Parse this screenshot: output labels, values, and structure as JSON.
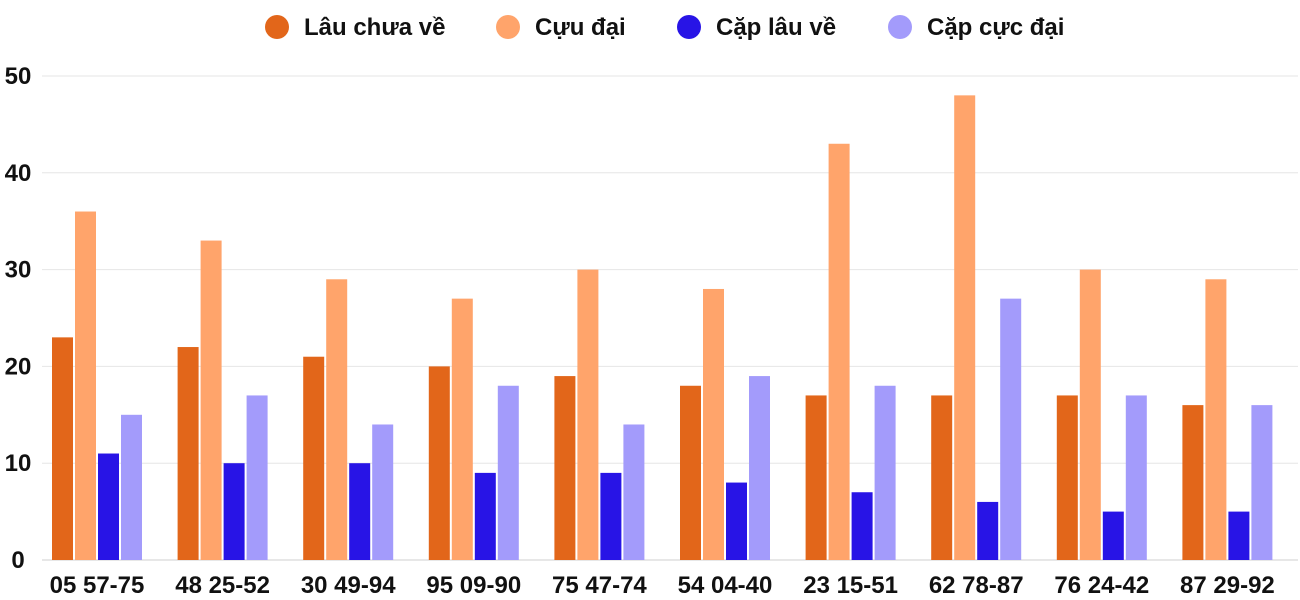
{
  "chart_data": {
    "type": "bar",
    "title": "",
    "xlabel": "",
    "ylabel": "",
    "ylim": [
      0,
      50
    ],
    "yticks": [
      0,
      10,
      20,
      30,
      40,
      50
    ],
    "grid": true,
    "legend_position": "top-center",
    "categories": [
      "05 57-75",
      "48 25-52",
      "30 49-94",
      "95 09-90",
      "75 47-74",
      "54 04-40",
      "23 15-51",
      "62 78-87",
      "76 24-42",
      "87 29-92"
    ],
    "series": [
      {
        "name": "Lâu chưa về",
        "color": "#e2661a",
        "values": [
          23,
          22,
          21,
          20,
          19,
          18,
          17,
          17,
          17,
          16
        ]
      },
      {
        "name": "Cựu đại",
        "color": "#ffa46b",
        "values": [
          36,
          33,
          29,
          27,
          30,
          28,
          43,
          48,
          30,
          29
        ]
      },
      {
        "name": "Cặp lâu về",
        "color": "#2814e6",
        "values": [
          11,
          10,
          10,
          9,
          9,
          8,
          7,
          6,
          5,
          5
        ]
      },
      {
        "name": "Cặp cực đại",
        "color": "#a39bfb",
        "values": [
          15,
          17,
          14,
          18,
          14,
          19,
          18,
          27,
          17,
          16
        ]
      }
    ]
  }
}
